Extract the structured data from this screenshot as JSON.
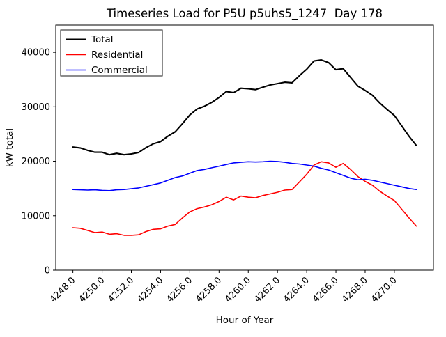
{
  "chart_data": {
    "type": "line",
    "title": "Timeseries Load for P5U p5uhs5_1247  Day 178",
    "xlabel": "Hour of Year",
    "ylabel": "kW total",
    "grid": false,
    "legend_position": "upper-left",
    "xlim": [
      4246.825,
      4272.675
    ],
    "ylim": [
      0,
      45000
    ],
    "xticks": [
      {
        "value": 4248,
        "label": "4248.0"
      },
      {
        "value": 4250,
        "label": "4250.0"
      },
      {
        "value": 4252,
        "label": "4252.0"
      },
      {
        "value": 4254,
        "label": "4254.0"
      },
      {
        "value": 4256,
        "label": "4256.0"
      },
      {
        "value": 4258,
        "label": "4258.0"
      },
      {
        "value": 4260,
        "label": "4260.0"
      },
      {
        "value": 4262,
        "label": "4262.0"
      },
      {
        "value": 4264,
        "label": "4264.0"
      },
      {
        "value": 4266,
        "label": "4266.0"
      },
      {
        "value": 4268,
        "label": "4268.0"
      },
      {
        "value": 4270,
        "label": "4270.0"
      }
    ],
    "yticks": [
      {
        "value": 0,
        "label": "0"
      },
      {
        "value": 10000,
        "label": "10000"
      },
      {
        "value": 20000,
        "label": "20000"
      },
      {
        "value": 30000,
        "label": "30000"
      },
      {
        "value": 40000,
        "label": "40000"
      }
    ],
    "x": [
      4248.0,
      4248.5,
      4249.0,
      4249.5,
      4250.0,
      4250.5,
      4251.0,
      4251.5,
      4252.0,
      4252.5,
      4253.0,
      4253.5,
      4254.0,
      4254.5,
      4255.0,
      4255.5,
      4256.0,
      4256.5,
      4257.0,
      4257.5,
      4258.0,
      4258.5,
      4259.0,
      4259.5,
      4260.0,
      4260.5,
      4261.0,
      4261.5,
      4262.0,
      4262.5,
      4263.0,
      4263.5,
      4264.0,
      4264.5,
      4265.0,
      4265.5,
      4266.0,
      4266.5,
      4267.0,
      4267.5,
      4268.0,
      4268.5,
      4269.0,
      4269.5,
      4270.0,
      4270.5,
      4271.0,
      4271.5
    ],
    "series": [
      {
        "name": "Total",
        "color": "#000000",
        "line_width": 2.1,
        "values": [
          22600,
          22450,
          22000,
          21650,
          21650,
          21200,
          21450,
          21200,
          21350,
          21600,
          22500,
          23200,
          23600,
          24600,
          25400,
          26900,
          28500,
          29600,
          30100,
          30800,
          31700,
          32800,
          32600,
          33400,
          33300,
          33150,
          33600,
          34000,
          34250,
          34500,
          34400,
          35700,
          36900,
          38400,
          38600,
          38100,
          36800,
          37000,
          35400,
          33800,
          33000,
          32100,
          30700,
          29500,
          28400,
          26500,
          24600,
          22900
        ]
      },
      {
        "name": "Residential",
        "color": "#ff0000",
        "line_width": 1.6,
        "values": [
          7800,
          7700,
          7300,
          6900,
          7000,
          6600,
          6700,
          6400,
          6400,
          6500,
          7100,
          7500,
          7600,
          8100,
          8400,
          9600,
          10700,
          11300,
          11600,
          12000,
          12600,
          13400,
          12900,
          13600,
          13400,
          13300,
          13700,
          14000,
          14300,
          14700,
          14800,
          16200,
          17600,
          19300,
          19900,
          19700,
          18900,
          19600,
          18500,
          17200,
          16300,
          15600,
          14500,
          13600,
          12800,
          11200,
          9600,
          8100
        ]
      },
      {
        "name": "Commercial",
        "color": "#0000ff",
        "line_width": 1.6,
        "values": [
          14800,
          14750,
          14700,
          14750,
          14650,
          14600,
          14750,
          14800,
          14950,
          15100,
          15400,
          15700,
          16000,
          16500,
          17000,
          17300,
          17800,
          18300,
          18500,
          18800,
          19100,
          19400,
          19700,
          19800,
          19900,
          19850,
          19900,
          20000,
          19950,
          19800,
          19600,
          19500,
          19300,
          19100,
          18700,
          18400,
          17900,
          17400,
          16900,
          16600,
          16700,
          16500,
          16200,
          15900,
          15600,
          15300,
          15000,
          14800
        ]
      }
    ]
  }
}
